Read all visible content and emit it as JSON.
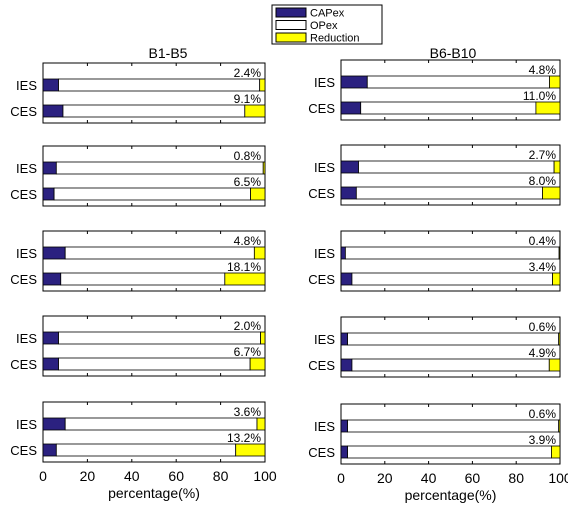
{
  "chart_data": {
    "type": "bar",
    "orientation": "horizontal",
    "stacked": true,
    "legend": {
      "placement": "top-center",
      "entries": [
        {
          "name": "CAPex",
          "color": "#2b2180"
        },
        {
          "name": "OPex",
          "color": "#ffffff"
        },
        {
          "name": "Reduction",
          "color": "#ffff00"
        }
      ]
    },
    "xlabel": "percentage(%)",
    "xlim": [
      0,
      100
    ],
    "xticks": [
      "0",
      "20",
      "40",
      "60",
      "80",
      "100"
    ],
    "columns": [
      {
        "title": "B1-B5",
        "panels": [
          {
            "categories": [
              "IES",
              "CES"
            ],
            "capex": [
              7,
              9
            ],
            "opex": [
              90.6,
              81.9
            ],
            "reduction": [
              2.4,
              9.1
            ],
            "labels": [
              "2.4%",
              "9.1%"
            ]
          },
          {
            "categories": [
              "IES",
              "CES"
            ],
            "capex": [
              6,
              5
            ],
            "opex": [
              93.2,
              88.5
            ],
            "reduction": [
              0.8,
              6.5
            ],
            "labels": [
              "0.8%",
              "6.5%"
            ]
          },
          {
            "categories": [
              "IES",
              "CES"
            ],
            "capex": [
              10,
              8
            ],
            "opex": [
              85.2,
              73.9
            ],
            "reduction": [
              4.8,
              18.1
            ],
            "labels": [
              "4.8%",
              "18.1%"
            ]
          },
          {
            "categories": [
              "IES",
              "CES"
            ],
            "capex": [
              7,
              7
            ],
            "opex": [
              91.0,
              86.3
            ],
            "reduction": [
              2.0,
              6.7
            ],
            "labels": [
              "2.0%",
              "6.7%"
            ]
          },
          {
            "categories": [
              "IES",
              "CES"
            ],
            "capex": [
              10,
              6
            ],
            "opex": [
              86.4,
              80.8
            ],
            "reduction": [
              3.6,
              13.2
            ],
            "labels": [
              "3.6%",
              "13.2%"
            ]
          }
        ]
      },
      {
        "title": "B6-B10",
        "panels": [
          {
            "categories": [
              "IES",
              "CES"
            ],
            "capex": [
              12,
              9
            ],
            "opex": [
              83.2,
              80.0
            ],
            "reduction": [
              4.8,
              11.0
            ],
            "labels": [
              "4.8%",
              "11.0%"
            ]
          },
          {
            "categories": [
              "IES",
              "CES"
            ],
            "capex": [
              8,
              7
            ],
            "opex": [
              89.3,
              85.0
            ],
            "reduction": [
              2.7,
              8.0
            ],
            "labels": [
              "2.7%",
              "8.0%"
            ]
          },
          {
            "categories": [
              "IES",
              "CES"
            ],
            "capex": [
              2,
              5
            ],
            "opex": [
              97.6,
              91.6
            ],
            "reduction": [
              0.4,
              3.4
            ],
            "labels": [
              "0.4%",
              "3.4%"
            ]
          },
          {
            "categories": [
              "IES",
              "CES"
            ],
            "capex": [
              3,
              5
            ],
            "opex": [
              96.4,
              90.1
            ],
            "reduction": [
              0.6,
              4.9
            ],
            "labels": [
              "0.6%",
              "4.9%"
            ]
          },
          {
            "categories": [
              "IES",
              "CES"
            ],
            "capex": [
              3,
              3
            ],
            "opex": [
              96.4,
              93.1
            ],
            "reduction": [
              0.6,
              3.9
            ],
            "labels": [
              "0.6%",
              "3.9%"
            ]
          }
        ]
      }
    ]
  }
}
